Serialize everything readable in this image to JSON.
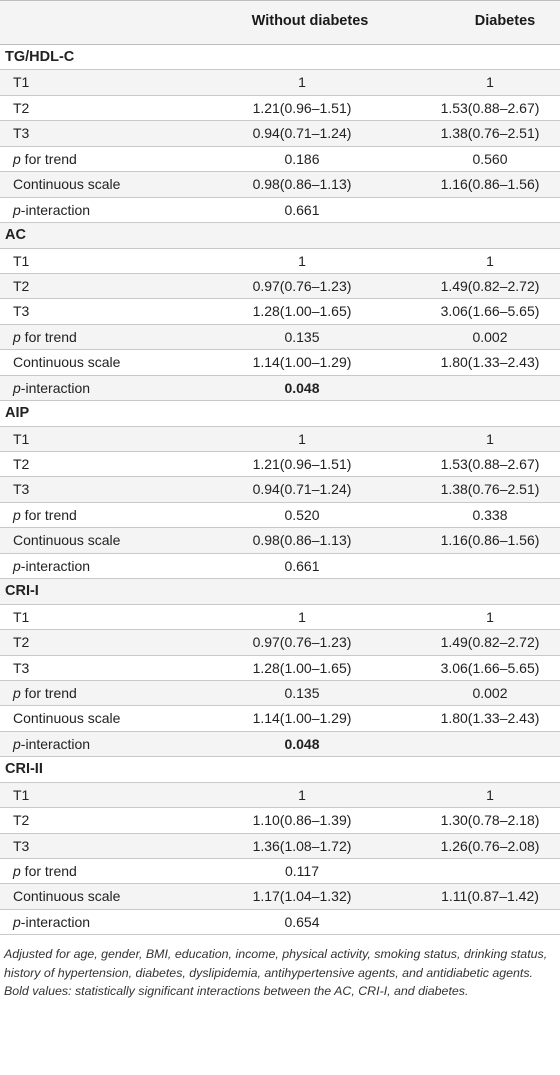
{
  "header": {
    "col1": "Without diabetes",
    "col2": "Diabetes"
  },
  "sections": [
    {
      "title": "TG/HDL-C",
      "rows": [
        {
          "label": "T1",
          "v1": "1",
          "v2": "1"
        },
        {
          "label": "T2",
          "v1": "1.21(0.96–1.51)",
          "v2": "1.53(0.88–2.67)"
        },
        {
          "label": "T3",
          "v1": "0.94(0.71–1.24)",
          "v2": "1.38(0.76–2.51)"
        },
        {
          "label_italic": "p",
          "label": " for trend",
          "v1": "0.186",
          "v2": "0.560"
        },
        {
          "label": "Continuous scale",
          "v1": "0.98(0.86–1.13)",
          "v2": "1.16(0.86–1.56)"
        },
        {
          "label_italic": "p",
          "label": "-interaction",
          "v1": "0.661",
          "v2": ""
        }
      ]
    },
    {
      "title": "AC",
      "rows": [
        {
          "label": "T1",
          "v1": "1",
          "v2": "1"
        },
        {
          "label": "T2",
          "v1": "0.97(0.76–1.23)",
          "v2": "1.49(0.82–2.72)"
        },
        {
          "label": "T3",
          "v1": "1.28(1.00–1.65)",
          "v2": "3.06(1.66–5.65)"
        },
        {
          "label_italic": "p",
          "label": " for trend",
          "v1": "0.135",
          "v2": "0.002"
        },
        {
          "label": "Continuous scale",
          "v1": "1.14(1.00–1.29)",
          "v2": "1.80(1.33–2.43)"
        },
        {
          "label_italic": "p",
          "label": "-interaction",
          "v1": "0.048",
          "v2": "",
          "bold": true
        }
      ]
    },
    {
      "title": "AIP",
      "rows": [
        {
          "label": "T1",
          "v1": "1",
          "v2": "1"
        },
        {
          "label": "T2",
          "v1": "1.21(0.96–1.51)",
          "v2": "1.53(0.88–2.67)"
        },
        {
          "label": "T3",
          "v1": "0.94(0.71–1.24)",
          "v2": "1.38(0.76–2.51)"
        },
        {
          "label_italic": "p",
          "label": " for trend",
          "v1": "0.520",
          "v2": "0.338"
        },
        {
          "label": "Continuous scale",
          "v1": "0.98(0.86–1.13)",
          "v2": "1.16(0.86–1.56)"
        },
        {
          "label_italic": "p",
          "label": "-interaction",
          "v1": "0.661",
          "v2": ""
        }
      ]
    },
    {
      "title": "CRI-I",
      "rows": [
        {
          "label": "T1",
          "v1": "1",
          "v2": "1"
        },
        {
          "label": "T2",
          "v1": "0.97(0.76–1.23)",
          "v2": "1.49(0.82–2.72)"
        },
        {
          "label": "T3",
          "v1": "1.28(1.00–1.65)",
          "v2": "3.06(1.66–5.65)"
        },
        {
          "label_italic": "p",
          "label": " for trend",
          "v1": "0.135",
          "v2": "0.002"
        },
        {
          "label": "Continuous scale",
          "v1": "1.14(1.00–1.29)",
          "v2": "1.80(1.33–2.43)"
        },
        {
          "label_italic": "p",
          "label": "-interaction",
          "v1": "0.048",
          "v2": "",
          "bold": true
        }
      ]
    },
    {
      "title": "CRI-II",
      "rows": [
        {
          "label": "T1",
          "v1": "1",
          "v2": "1"
        },
        {
          "label": "T2",
          "v1": "1.10(0.86–1.39)",
          "v2": "1.30(0.78–2.18)"
        },
        {
          "label": "T3",
          "v1": "1.36(1.08–1.72)",
          "v2": "1.26(0.76–2.08)"
        },
        {
          "label_italic": "p",
          "label": " for trend",
          "v1": "0.117",
          "v2": ""
        },
        {
          "label": "Continuous scale",
          "v1": "1.17(1.04–1.32)",
          "v2": "1.11(0.87–1.42)"
        },
        {
          "label_italic": "p",
          "label": "-interaction",
          "v1": "0.654",
          "v2": ""
        }
      ]
    }
  ],
  "footnote": "Adjusted for age, gender, BMI, education, income, physical activity, smoking status, drinking status, history of hypertension, diabetes, dyslipidemia, antihypertensive agents, and antidiabetic agents. Bold values: statistically significant interactions between the AC, CRI-I, and diabetes."
}
